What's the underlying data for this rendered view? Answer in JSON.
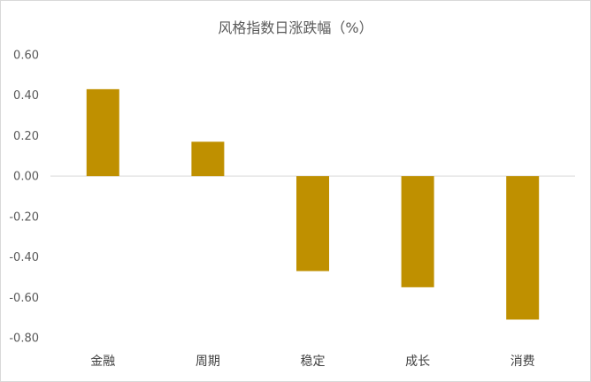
{
  "chart_data": {
    "type": "bar",
    "title": "风格指数日涨跌幅（%）",
    "categories": [
      "金融",
      "周期",
      "稳定",
      "成长",
      "消费"
    ],
    "values": [
      0.43,
      0.17,
      -0.47,
      -0.55,
      -0.71
    ],
    "ylim": [
      -0.8,
      0.6
    ],
    "yticks": [
      "0.60",
      "0.40",
      "0.20",
      "0.00",
      "-0.20",
      "-0.40",
      "-0.60",
      "-0.80"
    ],
    "grid": false,
    "colors": {
      "bar": "#bf9000",
      "axis": "#d9d9d9"
    }
  }
}
